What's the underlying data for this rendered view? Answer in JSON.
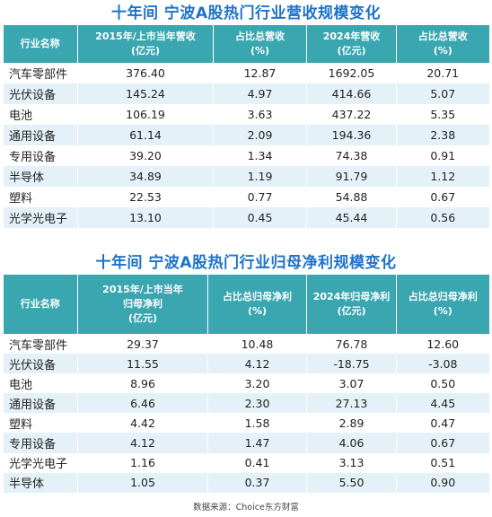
{
  "table1": {
    "title": "十年间 宁波A股热门行业营收规模变化",
    "headers": [
      {
        "l1": "行业名称",
        "l2": ""
      },
      {
        "l1": "2015年/上市当年营收",
        "l2": "(亿元)"
      },
      {
        "l1": "占比总营收",
        "l2": "(%)"
      },
      {
        "l1": "2024年营收",
        "l2": "(亿元)"
      },
      {
        "l1": "占比总营收",
        "l2": "(%)"
      }
    ],
    "rows": [
      [
        "汽车零部件",
        "376.40",
        "12.87",
        "1692.05",
        "20.71"
      ],
      [
        "光伏设备",
        "145.24",
        "4.97",
        "414.66",
        "5.07"
      ],
      [
        "电池",
        "106.19",
        "3.63",
        "437.22",
        "5.35"
      ],
      [
        "通用设备",
        "61.14",
        "2.09",
        "194.36",
        "2.38"
      ],
      [
        "专用设备",
        "39.20",
        "1.34",
        "74.38",
        "0.91"
      ],
      [
        "半导体",
        "34.89",
        "1.19",
        "91.79",
        "1.12"
      ],
      [
        "塑料",
        "22.53",
        "0.77",
        "54.88",
        "0.67"
      ],
      [
        "光学光电子",
        "13.10",
        "0.45",
        "45.44",
        "0.56"
      ]
    ]
  },
  "table2": {
    "title": "十年间 宁波A股热门行业归母净利规模变化",
    "headers": [
      {
        "l1": "行业名称",
        "l2": "",
        "l3": ""
      },
      {
        "l1": "2015年/上市当年",
        "l2": "归母净利",
        "l3": "(亿元)"
      },
      {
        "l1": "占比总归母净利",
        "l2": "(%)",
        "l3": ""
      },
      {
        "l1": "2024年归母净利",
        "l2": "(亿元)",
        "l3": ""
      },
      {
        "l1": "占比总归母净利",
        "l2": "(%)",
        "l3": ""
      }
    ],
    "rows": [
      [
        "汽车零部件",
        "29.37",
        "10.48",
        "76.78",
        "12.60"
      ],
      [
        "光伏设备",
        "11.55",
        "4.12",
        "-18.75",
        "-3.08"
      ],
      [
        "电池",
        "8.96",
        "3.20",
        "3.07",
        "0.50"
      ],
      [
        "通用设备",
        "6.46",
        "2.30",
        "27.13",
        "4.45"
      ],
      [
        "塑料",
        "4.42",
        "1.58",
        "2.89",
        "0.47"
      ],
      [
        "专用设备",
        "4.12",
        "1.47",
        "4.06",
        "0.67"
      ],
      [
        "光学光电子",
        "1.16",
        "0.41",
        "3.13",
        "0.51"
      ],
      [
        "半导体",
        "1.05",
        "0.37",
        "5.50",
        "0.90"
      ]
    ]
  },
  "source": "数据来源：Choice东方财富"
}
